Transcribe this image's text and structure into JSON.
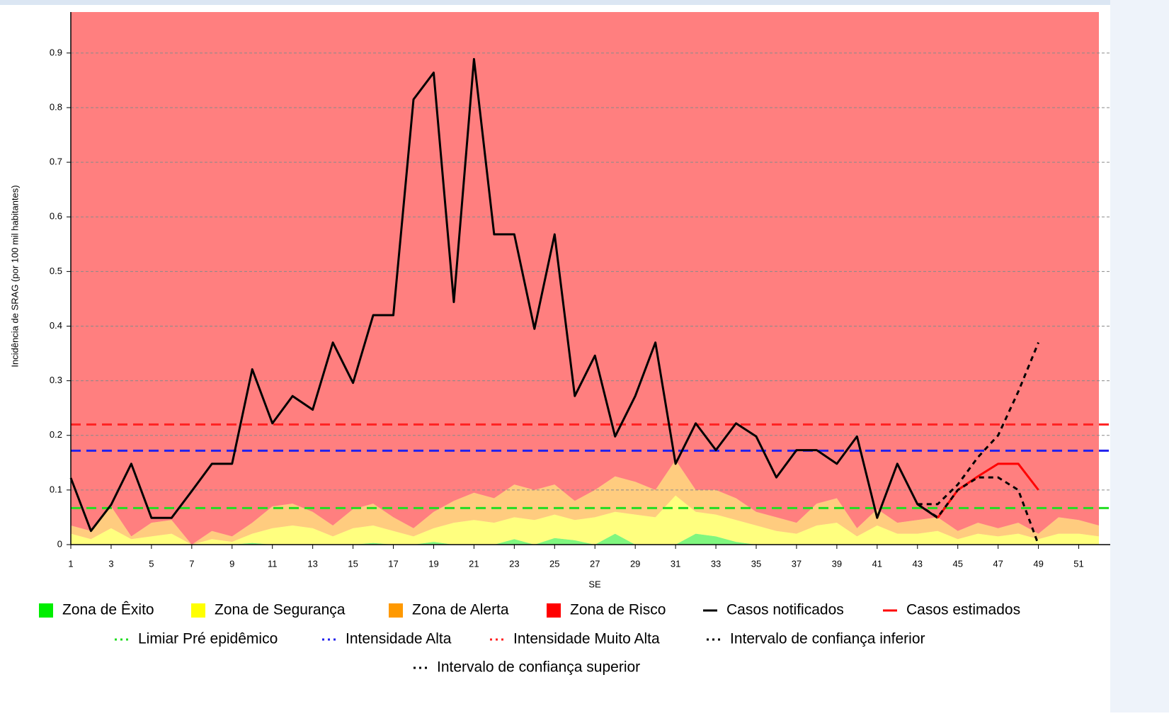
{
  "chart_data": {
    "type": "line",
    "y_label": "Incidência de SRAG (por 100 mil habitantes)",
    "x_label": "SE",
    "x": [
      1,
      2,
      3,
      4,
      5,
      6,
      7,
      8,
      9,
      10,
      11,
      12,
      13,
      14,
      15,
      16,
      17,
      18,
      19,
      20,
      21,
      22,
      23,
      24,
      25,
      26,
      27,
      28,
      29,
      30,
      31,
      32,
      33,
      34,
      35,
      36,
      37,
      38,
      39,
      40,
      41,
      42,
      43,
      44,
      45,
      46,
      47,
      48,
      49,
      50,
      51,
      52
    ],
    "xlim": [
      1,
      52
    ],
    "xticks": [
      1,
      3,
      5,
      7,
      9,
      11,
      13,
      15,
      17,
      19,
      21,
      23,
      25,
      27,
      29,
      31,
      33,
      35,
      37,
      39,
      41,
      43,
      45,
      47,
      49,
      51
    ],
    "ylim": [
      0,
      0.975
    ],
    "yticks": [
      0,
      0.1,
      0.2,
      0.3,
      0.4,
      0.5,
      0.6,
      0.7,
      0.8,
      0.9
    ],
    "grid": true,
    "zones": [
      {
        "name": "Zona de Êxito",
        "color": "#00ee00",
        "values": [
          0,
          0,
          0,
          0,
          0,
          0,
          0,
          0,
          0,
          0.003,
          0,
          0,
          0,
          0,
          0,
          0.003,
          0,
          0,
          0.005,
          0,
          0,
          0,
          0.01,
          0,
          0.012,
          0.008,
          0,
          0.02,
          0,
          0,
          0,
          0.02,
          0.015,
          0.005,
          0,
          0,
          0,
          0,
          0,
          0,
          0,
          0,
          0,
          0,
          0,
          0,
          0,
          0,
          0,
          0,
          0,
          0
        ]
      },
      {
        "name": "Zona de Segurança",
        "color": "#ffff00",
        "values": [
          0.02,
          0.01,
          0.03,
          0.01,
          0.015,
          0.02,
          0,
          0.01,
          0.005,
          0.017,
          0.03,
          0.035,
          0.03,
          0.015,
          0.03,
          0.032,
          0.025,
          0.015,
          0.025,
          0.04,
          0.045,
          0.04,
          0.04,
          0.045,
          0.043,
          0.037,
          0.05,
          0.04,
          0.055,
          0.05,
          0.09,
          0.04,
          0.04,
          0.04,
          0.035,
          0.025,
          0.02,
          0.035,
          0.04,
          0.015,
          0.035,
          0.02,
          0.02,
          0.025,
          0.01,
          0.02,
          0.015,
          0.02,
          0.01,
          0.02,
          0.02,
          0.015
        ]
      },
      {
        "name": "Zona de Alerta",
        "color": "#ff9900",
        "values": [
          0.015,
          0.015,
          0.04,
          0.005,
          0.025,
          0.025,
          0,
          0.015,
          0.01,
          0.02,
          0.04,
          0.04,
          0.03,
          0.02,
          0.035,
          0.04,
          0.025,
          0.015,
          0.03,
          0.04,
          0.05,
          0.045,
          0.06,
          0.055,
          0.055,
          0.035,
          0.05,
          0.065,
          0.06,
          0.05,
          0.065,
          0.04,
          0.045,
          0.04,
          0.025,
          0.025,
          0.02,
          0.04,
          0.045,
          0.015,
          0.03,
          0.02,
          0.025,
          0.025,
          0.015,
          0.02,
          0.015,
          0.02,
          0.01,
          0.03,
          0.025,
          0.02
        ]
      },
      {
        "name": "Zona de Risco",
        "color": "#ff0000"
      }
    ],
    "series": [
      {
        "name": "Casos notificados",
        "color": "#000000",
        "dash": false,
        "values": [
          0.122,
          0.025,
          0.073,
          0.148,
          0.049,
          0.049,
          0.098,
          0.148,
          0.148,
          0.321,
          0.222,
          0.272,
          0.247,
          0.37,
          0.296,
          0.42,
          0.42,
          0.815,
          0.864,
          0.444,
          0.889,
          0.568,
          0.568,
          0.395,
          0.568,
          0.272,
          0.346,
          0.198,
          0.272,
          0.37,
          0.148,
          0.222,
          0.173,
          0.222,
          0.198,
          0.123,
          0.173,
          0.173,
          0.148,
          0.198,
          0.049,
          0.148,
          0.074,
          0.049,
          null,
          null,
          null,
          null,
          null,
          null,
          null,
          null
        ]
      },
      {
        "name": "Casos estimados",
        "color": "#ff0000",
        "dash": false,
        "values": [
          null,
          null,
          null,
          null,
          null,
          null,
          null,
          null,
          null,
          null,
          null,
          null,
          null,
          null,
          null,
          null,
          null,
          null,
          null,
          null,
          null,
          null,
          null,
          null,
          null,
          null,
          null,
          null,
          null,
          null,
          null,
          null,
          null,
          null,
          null,
          null,
          null,
          null,
          null,
          null,
          null,
          null,
          null,
          0.049,
          0.1,
          0.125,
          0.148,
          0.148,
          0.1,
          null,
          null,
          null
        ]
      },
      {
        "name": "Intervalo de confiança inferior",
        "color": "#000000",
        "dash": true,
        "values": [
          null,
          null,
          null,
          null,
          null,
          null,
          null,
          null,
          null,
          null,
          null,
          null,
          null,
          null,
          null,
          null,
          null,
          null,
          null,
          null,
          null,
          null,
          null,
          null,
          null,
          null,
          null,
          null,
          null,
          null,
          null,
          null,
          null,
          null,
          null,
          null,
          null,
          null,
          null,
          null,
          null,
          null,
          0.074,
          0.05,
          0.1,
          0.123,
          0.123,
          0.1,
          0,
          null,
          null,
          null
        ]
      },
      {
        "name": "Intervalo de confiança superior",
        "color": "#000000",
        "dash": true,
        "values": [
          null,
          null,
          null,
          null,
          null,
          null,
          null,
          null,
          null,
          null,
          null,
          null,
          null,
          null,
          null,
          null,
          null,
          null,
          null,
          null,
          null,
          null,
          null,
          null,
          null,
          null,
          null,
          null,
          null,
          null,
          null,
          null,
          null,
          null,
          null,
          null,
          null,
          null,
          null,
          null,
          null,
          null,
          0.074,
          0.074,
          0.11,
          0.16,
          0.2,
          0.28,
          0.37,
          null,
          null,
          null
        ]
      }
    ],
    "thresholds": [
      {
        "name": "Limiar Pré epidêmico",
        "color": "#22dd22",
        "value": 0.067
      },
      {
        "name": "Intensidade Alta",
        "color": "#2222ee",
        "value": 0.172
      },
      {
        "name": "Intensidade Muito Alta",
        "color": "#ff2222",
        "value": 0.22
      }
    ]
  }
}
